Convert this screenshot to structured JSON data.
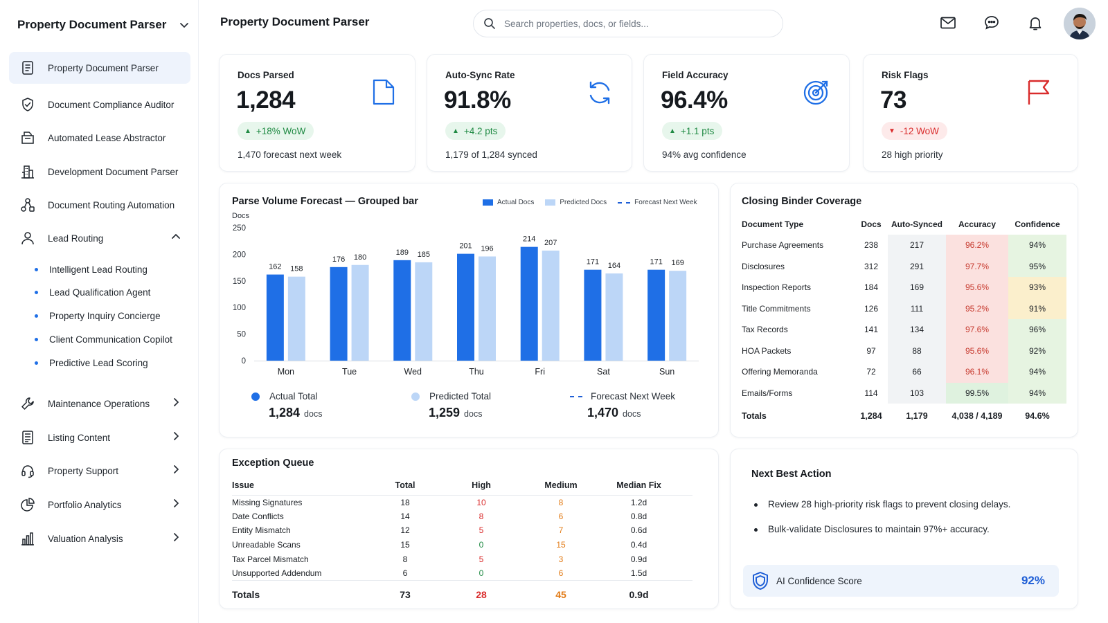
{
  "sidebar": {
    "brand": "Property Document Parser",
    "items": [
      {
        "label": "Property Document Parser",
        "icon": "document-list-icon",
        "active": true
      },
      {
        "label": "Document Compliance Auditor",
        "icon": "shield-check-icon"
      },
      {
        "label": "Automated Lease Abstractor",
        "icon": "folder-doc-icon"
      },
      {
        "label": "Development Document Parser",
        "icon": "building-icon"
      },
      {
        "label": "Document Routing Automation",
        "icon": "workflow-icon"
      },
      {
        "label": "Lead Routing",
        "icon": "person-icon",
        "expanded": true
      },
      {
        "label": "Maintenance Operations",
        "icon": "wrench-icon"
      },
      {
        "label": "Listing Content",
        "icon": "list-icon"
      },
      {
        "label": "Property Support",
        "icon": "headset-icon"
      },
      {
        "label": "Portfolio Analytics",
        "icon": "pie-chart-icon"
      },
      {
        "label": "Valuation Analysis",
        "icon": "bar-chart-icon"
      }
    ],
    "sub_items": [
      "Intelligent Lead Routing",
      "Lead Qualification Agent",
      "Property Inquiry Concierge",
      "Client Communication Copilot",
      "Predictive Lead Scoring"
    ]
  },
  "header": {
    "title": "Property Document Parser",
    "search_placeholder": "Search properties, docs, or fields...",
    "icons": [
      "mail-icon",
      "chat-icon",
      "bell-icon",
      "user-avatar"
    ]
  },
  "kpis": [
    {
      "title": "Docs Parsed",
      "value": "1,284",
      "badge": "+18% WoW",
      "trend": "up",
      "sub": "1,470 forecast next week",
      "icon": "document-icon",
      "color": "#1f6fe6"
    },
    {
      "title": "Auto-Sync Rate",
      "value": "91.8%",
      "badge": "+4.2 pts",
      "trend": "up",
      "sub": "1,179 of 1,284 synced",
      "icon": "sync-icon",
      "color": "#1f6fe6"
    },
    {
      "title": "Field Accuracy",
      "value": "96.4%",
      "badge": "+1.1 pts",
      "trend": "up",
      "sub": "94% avg confidence",
      "icon": "target-icon",
      "color": "#1f6fe6"
    },
    {
      "title": "Risk Flags",
      "value": "73",
      "badge": "-12 WoW",
      "trend": "down",
      "sub": "28 high priority",
      "icon": "flag-icon",
      "color": "#d92b2b"
    }
  ],
  "forecast": {
    "title": "Parse Volume Forecast — Grouped bar",
    "legend": [
      "Actual Docs",
      "Predicted Docs",
      "Forecast Next Week"
    ],
    "totals": [
      {
        "label": "Actual Total",
        "value": "1,284",
        "unit": "docs"
      },
      {
        "label": "Predicted Total",
        "value": "1,259",
        "unit": "docs"
      },
      {
        "label": "Forecast Next Week",
        "value": "1,470",
        "unit": "docs"
      }
    ]
  },
  "chart_data": {
    "type": "bar",
    "categories": [
      "Mon",
      "Tue",
      "Wed",
      "Thu",
      "Fri",
      "Sat",
      "Sun"
    ],
    "series": [
      {
        "name": "Actual Docs",
        "values": [
          162,
          176,
          189,
          201,
          214,
          171,
          171
        ],
        "color": "#1f6fe6"
      },
      {
        "name": "Predicted Docs",
        "values": [
          158,
          180,
          185,
          196,
          207,
          164,
          169
        ],
        "color": "#bcd6f7"
      }
    ],
    "ylabel": "Docs",
    "ylim": [
      0,
      250
    ],
    "yticks": [
      0,
      50,
      100,
      150,
      200,
      250
    ],
    "grid": false,
    "legend_position": "top-right"
  },
  "coverage": {
    "title": "Closing Binder Coverage",
    "columns": [
      "Document Type",
      "Docs",
      "Auto-Synced",
      "Accuracy",
      "Confidence"
    ],
    "rows": [
      [
        "Purchase Agreements",
        "238",
        "217",
        "96.2%",
        "94%"
      ],
      [
        "Disclosures",
        "312",
        "291",
        "97.7%",
        "95%"
      ],
      [
        "Inspection Reports",
        "184",
        "169",
        "95.6%",
        "93%"
      ],
      [
        "Title Commitments",
        "126",
        "111",
        "95.2%",
        "91%"
      ],
      [
        "Tax Records",
        "141",
        "134",
        "97.6%",
        "96%"
      ],
      [
        "HOA Packets",
        "97",
        "88",
        "95.6%",
        "92%"
      ],
      [
        "Offering Memoranda",
        "72",
        "66",
        "96.1%",
        "94%"
      ],
      [
        "Emails/Forms",
        "114",
        "103",
        "99.5%",
        "94%"
      ]
    ],
    "totals": [
      "Totals",
      "1,284",
      "1,179",
      "4,038 / 4,189",
      "94.6%"
    ]
  },
  "exceptions": {
    "title": "Exception Queue",
    "columns": [
      "Issue",
      "Total",
      "High",
      "Medium",
      "Median Fix"
    ],
    "rows": [
      [
        "Missing Signatures",
        "18",
        "10",
        "8",
        "1.2d"
      ],
      [
        "Date Conflicts",
        "14",
        "8",
        "6",
        "0.8d"
      ],
      [
        "Entity Mismatch",
        "12",
        "5",
        "7",
        "0.6d"
      ],
      [
        "Unreadable Scans",
        "15",
        "0",
        "15",
        "0.4d"
      ],
      [
        "Tax Parcel Mismatch",
        "8",
        "5",
        "3",
        "0.9d"
      ],
      [
        "Unsupported Addendum",
        "6",
        "0",
        "6",
        "1.5d"
      ]
    ],
    "totals": [
      "Totals",
      "73",
      "28",
      "45",
      "0.9d"
    ]
  },
  "next_action": {
    "title": "Next Best Action",
    "items": [
      "Review 28 high-priority risk flags to prevent closing delays.",
      "Bulk-validate Disclosures to maintain 97%+ accuracy."
    ],
    "confidence_label": "AI Confidence Score",
    "confidence_value": "92%"
  }
}
